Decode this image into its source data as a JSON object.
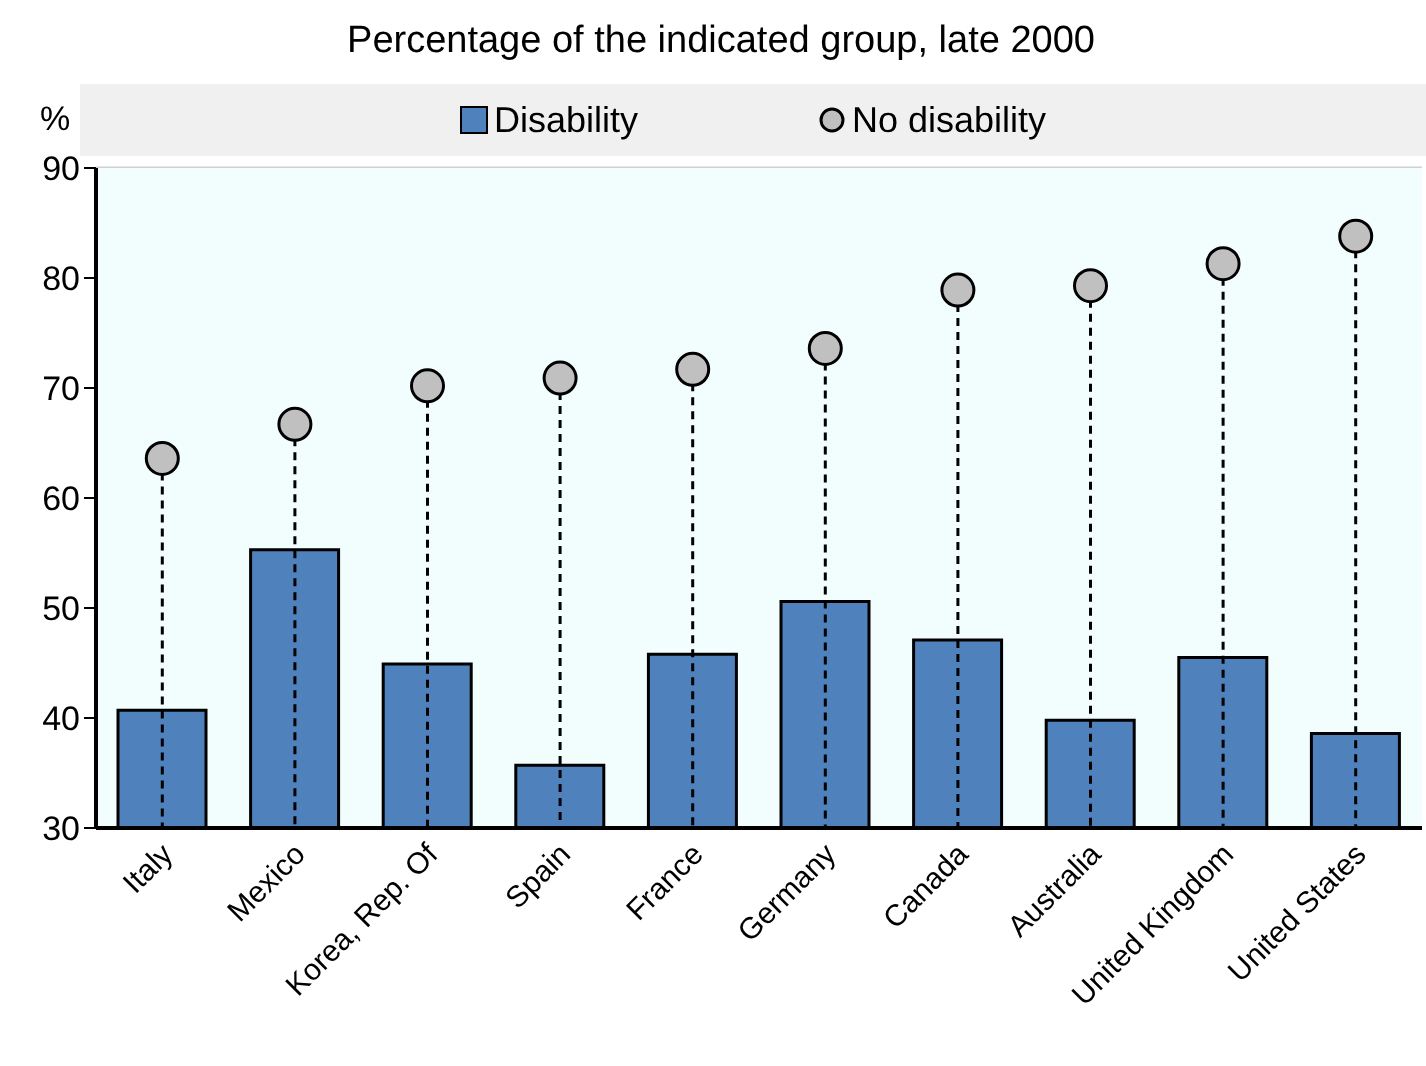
{
  "chart_data": {
    "type": "bar",
    "title": "Percentage of the indicated group, late 2000",
    "ylabel": "%",
    "categories": [
      "Italy",
      "Mexico",
      "Korea, Rep. Of",
      "Spain",
      "France",
      "Germany",
      "Canada",
      "Australia",
      "United Kingdom",
      "United States"
    ],
    "series": [
      {
        "name": "Disability",
        "color": "#4f81bd",
        "values": [
          40.7,
          55.3,
          44.9,
          35.7,
          45.8,
          50.6,
          47.1,
          39.8,
          45.5,
          38.6
        ]
      },
      {
        "name": "No disability",
        "type": "lollipop",
        "color": "#c0c0c0",
        "values": [
          63.6,
          66.7,
          70.2,
          70.9,
          71.7,
          73.6,
          78.9,
          79.3,
          81.3,
          83.8
        ]
      }
    ],
    "ylim": [
      30,
      90
    ],
    "yticks": [
      30,
      40,
      50,
      60,
      70,
      80,
      90
    ],
    "grid": true,
    "legend": "top",
    "marker": "circle",
    "line_style": "dashed"
  }
}
